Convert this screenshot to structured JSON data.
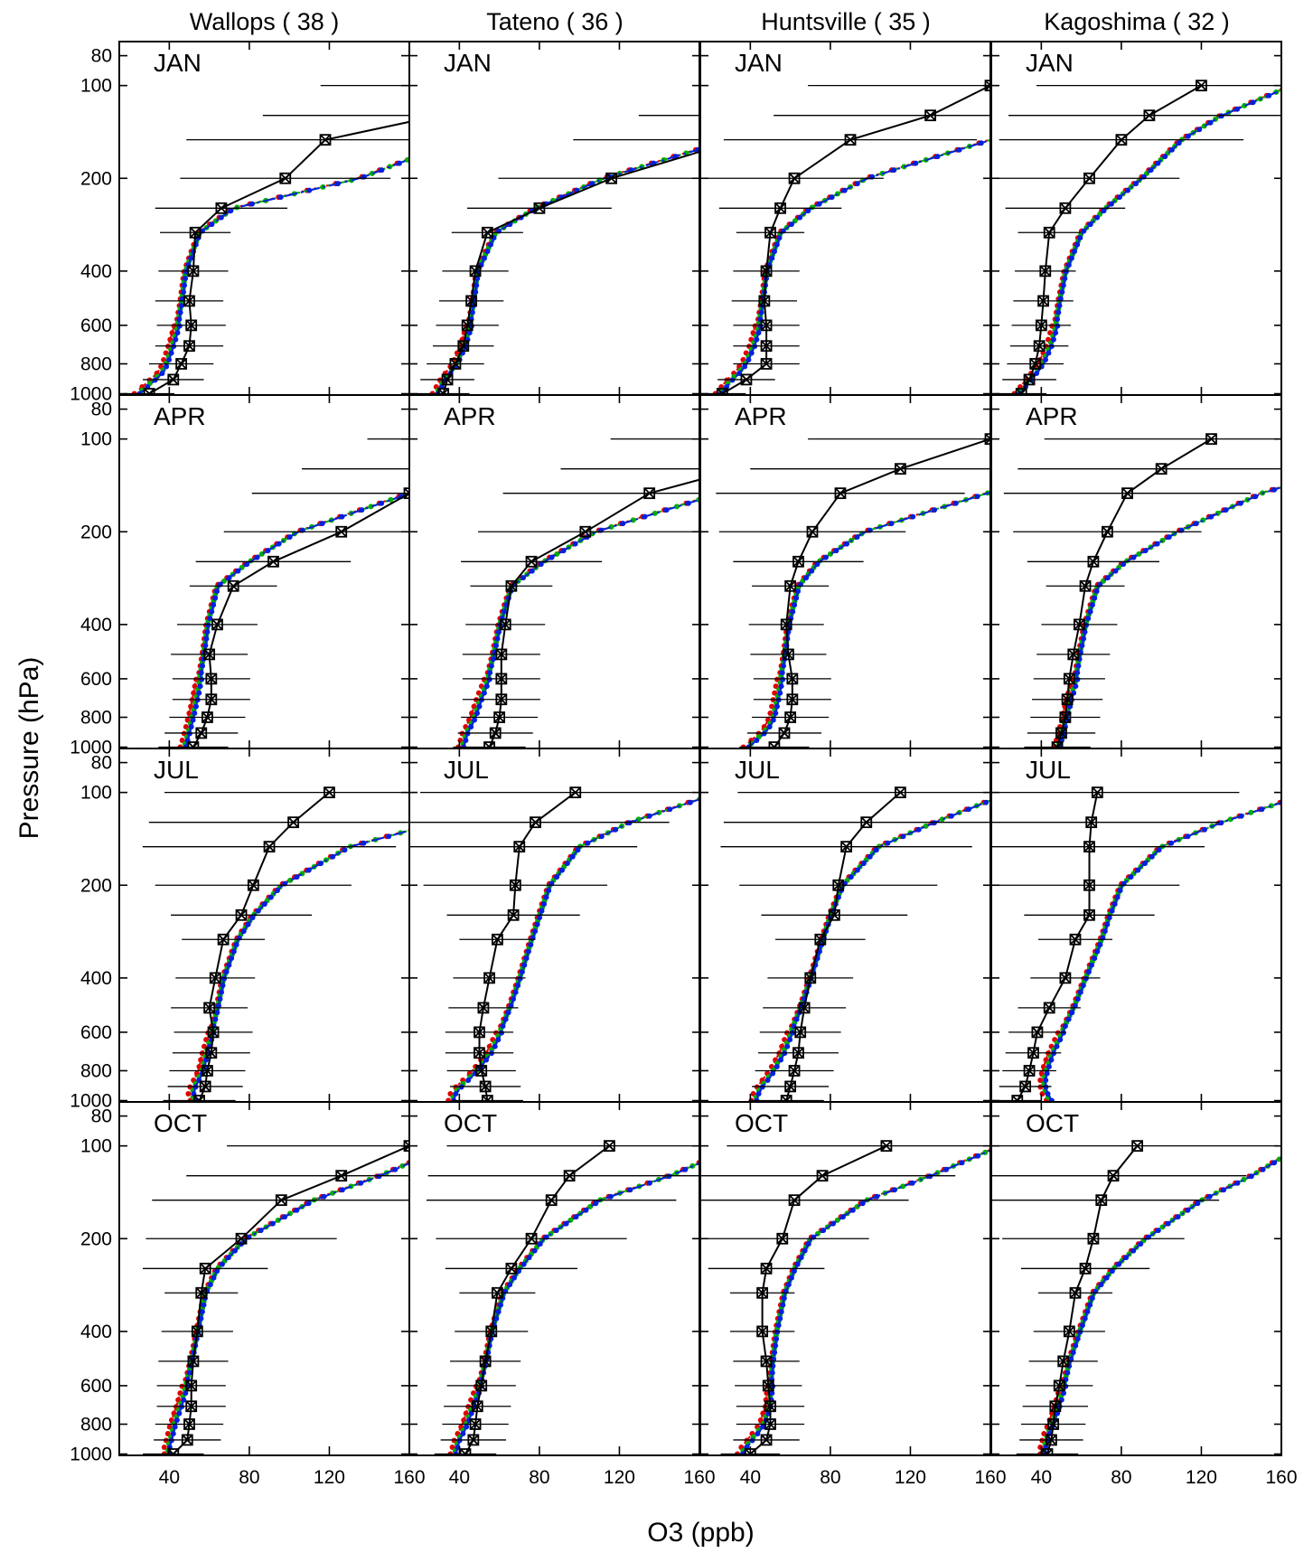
{
  "chart_data": {
    "type": "line",
    "xlabel": "O3 (ppb)",
    "ylabel": "Pressure (hPa)",
    "xlim": [
      15,
      160
    ],
    "ylim": [
      1010,
      72
    ],
    "y_scale": "log",
    "x_ticks": [
      40,
      80,
      120,
      160
    ],
    "x_tick_labels": [
      "40",
      "80",
      "120",
      "160"
    ],
    "y_ticks": [
      80,
      100,
      200,
      400,
      600,
      800,
      1000
    ],
    "y_tick_labels": [
      "80",
      "100",
      "200",
      "400",
      "600",
      "800",
      "1000"
    ],
    "grid": false,
    "legend": "none",
    "colors": {
      "observed": "#000000",
      "model_1": "#e00000",
      "model_2": "#00b000",
      "model_3": "#0020e0"
    },
    "stations": [
      "Wallops ( 38 )",
      "Tateno ( 36 )",
      "Huntsville ( 35 )",
      "Kagoshima ( 32 )"
    ],
    "months": [
      "JAN",
      "APR",
      "JUL",
      "OCT"
    ],
    "obs_pressure": [
      1000,
      900,
      800,
      700,
      600,
      500,
      400,
      300,
      250,
      200,
      150,
      125,
      100
    ],
    "model_pressure": [
      1000,
      950,
      900,
      850,
      800,
      700,
      600,
      500,
      400,
      300,
      250,
      200,
      150,
      125,
      100
    ],
    "panels": [
      {
        "station": "Wallops ( 38 )",
        "month": "JAN",
        "obs": [
          30,
          42,
          46,
          50,
          51,
          50,
          52,
          53,
          66,
          98,
          118,
          175,
          220
        ],
        "model": [
          24,
          28,
          32,
          36,
          38,
          41,
          44,
          46,
          48,
          55,
          72,
          135,
          185,
          240,
          290
        ]
      },
      {
        "station": "Tateno ( 36 )",
        "month": "JAN",
        "obs": [
          32,
          34,
          38,
          42,
          44,
          46,
          48,
          54,
          80,
          116,
          180,
          230,
          280
        ],
        "model": [
          28,
          30,
          32,
          35,
          38,
          42,
          45,
          47,
          49,
          58,
          78,
          112,
          175,
          230,
          280
        ]
      },
      {
        "station": "Huntsville ( 35 )",
        "month": "JAN",
        "obs": [
          26,
          38,
          48,
          48,
          48,
          47,
          48,
          50,
          55,
          62,
          90,
          130,
          160
        ],
        "model": [
          24,
          27,
          30,
          34,
          37,
          41,
          44,
          46,
          48,
          55,
          70,
          98,
          160,
          220,
          270
        ]
      },
      {
        "station": "Kagoshima ( 32 )",
        "month": "JAN",
        "obs": [
          30,
          34,
          37,
          39,
          40,
          41,
          42,
          44,
          52,
          64,
          80,
          94,
          120
        ],
        "model": [
          28,
          31,
          34,
          37,
          40,
          44,
          47,
          49,
          52,
          60,
          72,
          90,
          110,
          130,
          165
        ]
      },
      {
        "station": "Wallops ( 38 )",
        "month": "APR",
        "obs": [
          52,
          56,
          59,
          61,
          61,
          60,
          64,
          72,
          92,
          126,
          160,
          200,
          250
        ],
        "model": [
          47,
          48,
          49,
          50,
          51,
          53,
          55,
          57,
          59,
          64,
          80,
          104,
          160,
          210,
          260
        ]
      },
      {
        "station": "Tateno ( 36 )",
        "month": "APR",
        "obs": [
          55,
          58,
          60,
          61,
          61,
          61,
          63,
          66,
          76,
          103,
          135,
          180,
          220
        ],
        "model": [
          41,
          42,
          43,
          45,
          47,
          50,
          54,
          57,
          60,
          66,
          82,
          108,
          170,
          220,
          270
        ]
      },
      {
        "station": "Huntsville ( 35 )",
        "month": "APR",
        "obs": [
          52,
          57,
          60,
          61,
          61,
          59,
          58,
          60,
          64,
          71,
          85,
          115,
          160
        ],
        "model": [
          38,
          42,
          46,
          49,
          51,
          53,
          55,
          57,
          59,
          64,
          74,
          97,
          158,
          210,
          260
        ]
      },
      {
        "station": "Kagoshima ( 32 )",
        "month": "APR",
        "obs": [
          48,
          50,
          52,
          53,
          54,
          56,
          59,
          62,
          66,
          73,
          83,
          100,
          125
        ],
        "model": [
          48,
          49,
          50,
          51,
          52,
          54,
          57,
          59,
          62,
          68,
          82,
          108,
          150,
          190,
          240
        ]
      },
      {
        "station": "Wallops ( 38 )",
        "month": "JUL",
        "obs": [
          55,
          58,
          59,
          61,
          62,
          60,
          63,
          67,
          76,
          82,
          90,
          102,
          120
        ],
        "model": [
          52,
          51,
          52,
          54,
          56,
          58,
          61,
          64,
          67,
          74,
          82,
          96,
          130,
          175,
          220
        ]
      },
      {
        "station": "Tateno ( 36 )",
        "month": "JUL",
        "obs": [
          54,
          53,
          51,
          50,
          50,
          52,
          55,
          59,
          67,
          68,
          70,
          78,
          98
        ],
        "model": [
          36,
          37,
          40,
          44,
          48,
          55,
          60,
          65,
          70,
          76,
          80,
          85,
          100,
          125,
          170
        ]
      },
      {
        "station": "Huntsville ( 35 )",
        "month": "JUL",
        "obs": [
          58,
          60,
          62,
          64,
          65,
          67,
          70,
          75,
          82,
          84,
          88,
          98,
          115
        ],
        "model": [
          42,
          43,
          45,
          48,
          51,
          56,
          60,
          65,
          70,
          76,
          80,
          86,
          104,
          132,
          170
        ]
      },
      {
        "station": "Kagoshima ( 32 )",
        "month": "JUL",
        "obs": [
          28,
          32,
          34,
          36,
          38,
          44,
          52,
          57,
          64,
          64,
          64,
          65,
          68
        ],
        "model": [
          44,
          42,
          41,
          41,
          42,
          45,
          50,
          56,
          62,
          70,
          74,
          80,
          100,
          130,
          175
        ]
      },
      {
        "station": "Wallops ( 38 )",
        "month": "OCT",
        "obs": [
          42,
          49,
          50,
          51,
          51,
          52,
          54,
          56,
          58,
          76,
          96,
          126,
          160
        ],
        "model": [
          39,
          39,
          40,
          41,
          42,
          45,
          48,
          51,
          54,
          58,
          64,
          78,
          112,
          145,
          180
        ]
      },
      {
        "station": "Tateno ( 36 )",
        "month": "OCT",
        "obs": [
          43,
          47,
          48,
          49,
          51,
          53,
          56,
          59,
          66,
          76,
          86,
          95,
          115
        ],
        "model": [
          37,
          38,
          39,
          41,
          43,
          46,
          50,
          53,
          56,
          62,
          70,
          82,
          110,
          145,
          180
        ]
      },
      {
        "station": "Huntsville ( 35 )",
        "month": "OCT",
        "obs": [
          40,
          48,
          50,
          50,
          49,
          48,
          46,
          46,
          48,
          56,
          62,
          76,
          108
        ],
        "model": [
          35,
          37,
          40,
          43,
          46,
          49,
          50,
          51,
          53,
          57,
          62,
          70,
          98,
          130,
          165
        ]
      },
      {
        "station": "Kagoshima ( 32 )",
        "month": "OCT",
        "obs": [
          43,
          45,
          46,
          47,
          49,
          51,
          54,
          57,
          62,
          66,
          70,
          76,
          88
        ],
        "model": [
          41,
          41,
          42,
          43,
          45,
          48,
          51,
          54,
          59,
          66,
          76,
          92,
          120,
          145,
          170
        ]
      }
    ]
  }
}
